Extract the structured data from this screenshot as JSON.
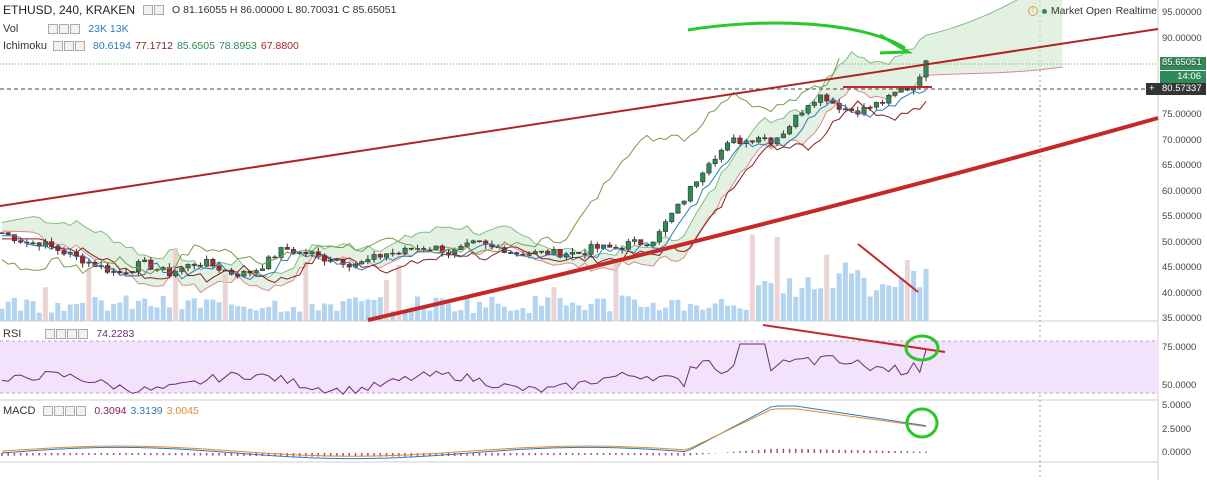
{
  "header": {
    "symbol_line": "ETHUSD, 240, KRAKEN",
    "ohlc": "O 81.16055 H 86.00000 L 80.70031 C 85.65051",
    "vol_label": "Vol",
    "vol_values": "23K 13K",
    "ichimoku_label": "Ichimoku",
    "ichimoku_values": [
      "80.6194",
      "77.1712",
      "85.6505",
      "78.8953",
      "67.8800"
    ],
    "ichimoku_colors": [
      "#2b7bb9",
      "#8a1c1c",
      "#2e8b57",
      "#2e8b57",
      "#b22222"
    ]
  },
  "status": {
    "market_text": "Market Open",
    "realtime_text": "Realtime"
  },
  "price_axis": {
    "labels": [
      "95.00000",
      "90.00000",
      "85.00000",
      "80.00000",
      "75.00000",
      "70.00000",
      "65.00000",
      "60.00000",
      "55.00000",
      "50.00000",
      "45.00000",
      "40.00000",
      "35.00000"
    ],
    "values": [
      95,
      90,
      85,
      80,
      75,
      70,
      65,
      60,
      55,
      50,
      45,
      40,
      35
    ],
    "last_price": "85.65051",
    "countdown": "14:06",
    "crosshair_price": "80.57337",
    "crosshair_plus": "+"
  },
  "rsi": {
    "label": "RSI",
    "value": "74.2283",
    "axis_labels": [
      "75.0000",
      "50.0000"
    ],
    "axis_values": [
      75,
      50
    ]
  },
  "macd": {
    "label": "MACD",
    "values": [
      "0.3094",
      "3.3139",
      "3.0045"
    ],
    "colors": [
      "#8a1c5a",
      "#2b7bb9",
      "#e08a2c"
    ],
    "axis_labels": [
      "5.0000",
      "2.5000",
      "0.0000"
    ],
    "axis_values": [
      5,
      2.5,
      0
    ]
  },
  "colors": {
    "bull": "#2e8b57",
    "bear": "#b22222",
    "trend": "#c62828",
    "annotation": "#29c729",
    "rsi_band": "#f3e2fb",
    "volume": "#9fc9ee"
  },
  "chart_data": {
    "type": "candlestick",
    "instrument": "ETHUSD",
    "timeframe": "240",
    "price_range": [
      34.5,
      96
    ],
    "last_close": 85.65051,
    "approx_closes": [
      52,
      51,
      50,
      50,
      49,
      48,
      47,
      46,
      45,
      44,
      45,
      46,
      45,
      44,
      45,
      46,
      46,
      45,
      44,
      44,
      45,
      47,
      49,
      48,
      48,
      47,
      47,
      46,
      46,
      47,
      48,
      48,
      49,
      49,
      49,
      48,
      49,
      50,
      49,
      49,
      48,
      48,
      48,
      48,
      48,
      48,
      49,
      49,
      49,
      50,
      50,
      51,
      55,
      58,
      62,
      66,
      68,
      70,
      70,
      71,
      70,
      72,
      75,
      78,
      79,
      77,
      76,
      76,
      77,
      78,
      80,
      80.5,
      85.65
    ]
  }
}
